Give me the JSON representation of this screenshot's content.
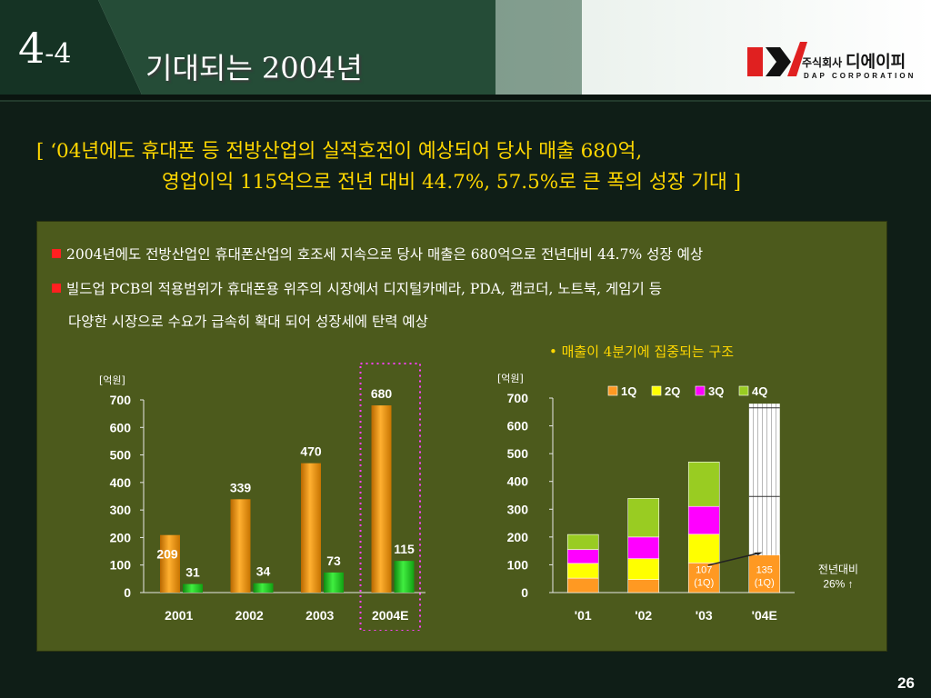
{
  "header": {
    "section_number": "4",
    "section_suffix": "-4",
    "title": "기대되는 2004년",
    "logo_company_ko": "주식회사",
    "logo_company_name": "디에이피",
    "logo_company_en": "DAP CORPORATION"
  },
  "summary": {
    "line1": "[ ‘04년에도 휴대폰 등 전방산업의 실적호전이 예상되어 당사 매출 680억,",
    "line2": "영업이익 115억으로 전년 대비 44.7%, 57.5%로 큰 폭의 성장 기대 ]"
  },
  "bullets": [
    "2004년에도 전방산업인 휴대폰산업의 호조세 지속으로 당사 매출은 680억으로 전년대비 44.7% 성장 예상",
    "빌드업 PCB의 적용범위가 휴대폰용 위주의 시장에서 디지털카메라, PDA, 캠코더, 노트북, 게임기 등"
  ],
  "bullet_continuation": "다양한 시장으로 수요가 급속히 확대 되어 성장세에 탄력 예상",
  "chart_note": "• 매출이 4분기에 집중되는 구조",
  "page_number": "26",
  "colors": {
    "summary_text": "#ffd700",
    "panel_bg": "#4c5a1c",
    "revenue_bar": "#ff9900",
    "profit_bar": "#22cc22",
    "q1": "#ff9922",
    "q2": "#ffff00",
    "q3": "#ff00ff",
    "q4": "#99cc22"
  },
  "chart_data": [
    {
      "type": "bar",
      "unit_label": "[억원]",
      "categories": [
        "2001",
        "2002",
        "2003",
        "2004E"
      ],
      "series": [
        {
          "values": [
            209,
            339,
            470,
            680
          ]
        },
        {
          "values": [
            31,
            34,
            73,
            115
          ]
        }
      ],
      "ylim": [
        0,
        700
      ],
      "yticks": [
        0,
        100,
        200,
        300,
        400,
        500,
        600,
        700
      ],
      "highlight": "2004E"
    },
    {
      "type": "bar",
      "stacked": true,
      "unit_label": "[억원]",
      "categories": [
        "'01",
        "'02",
        "'03",
        "'04E"
      ],
      "series": [
        {
          "name": "1Q",
          "values": [
            52,
            47,
            107,
            135
          ]
        },
        {
          "name": "2Q",
          "values": [
            53,
            75,
            103,
            null
          ]
        },
        {
          "name": "3Q",
          "values": [
            50,
            78,
            100,
            null
          ]
        },
        {
          "name": "4Q",
          "values": [
            54,
            139,
            160,
            null
          ]
        }
      ],
      "totals_2004E": 680,
      "ylim": [
        0,
        700
      ],
      "yticks": [
        0,
        100,
        200,
        300,
        400,
        500,
        600,
        700
      ],
      "labels": [
        {
          "category": "'03",
          "lines": [
            "107",
            "(1Q)"
          ]
        },
        {
          "category": "'04E",
          "lines": [
            "135",
            "(1Q)"
          ]
        }
      ],
      "annotation": [
        "전년대비",
        "26% ↑"
      ]
    }
  ]
}
